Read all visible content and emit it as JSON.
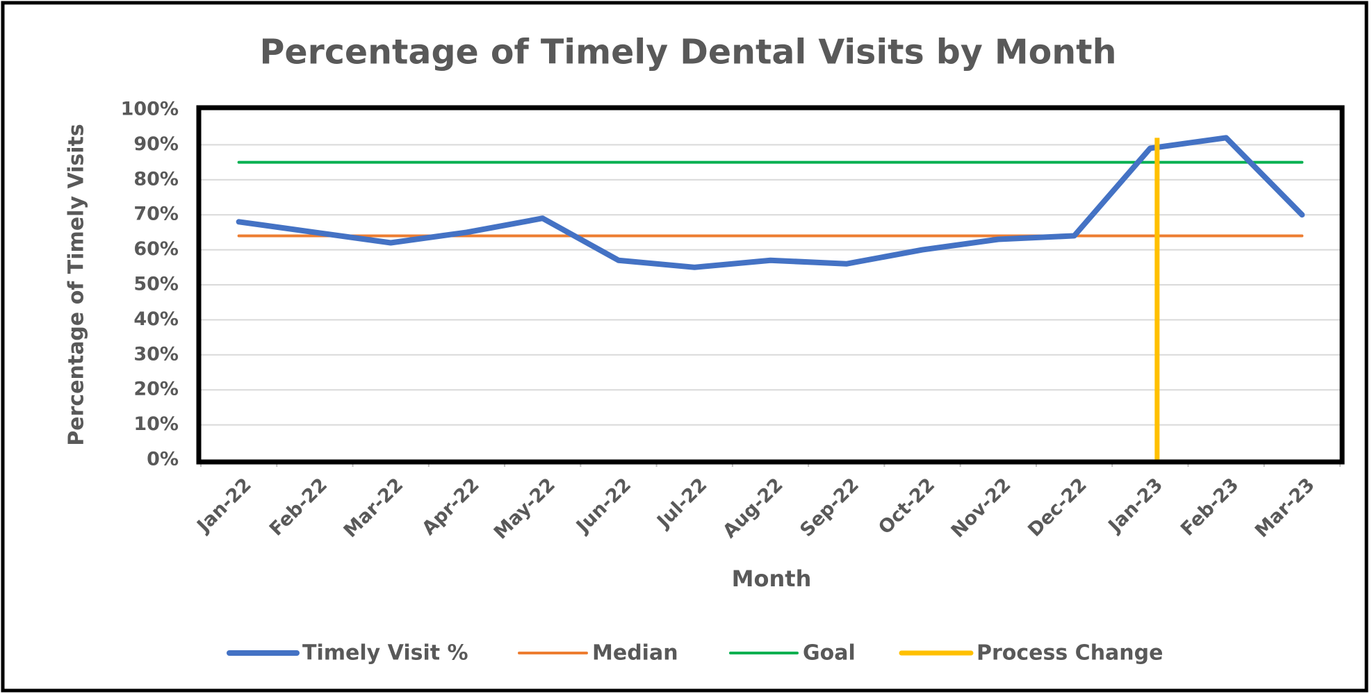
{
  "chart_data": {
    "type": "line",
    "title": "Percentage of Timely Dental Visits by Month",
    "x_label": "Month",
    "y_label": "Percentage of Timely Visits",
    "categories": [
      "Jan-22",
      "Feb-22",
      "Mar-22",
      "Apr-22",
      "May-22",
      "Jun-22",
      "Jul-22",
      "Aug-22",
      "Sep-22",
      "Oct-22",
      "Nov-22",
      "Dec-22",
      "Jan-23",
      "Feb-23",
      "Mar-23"
    ],
    "series": [
      {
        "name": "Timely Visit %",
        "color": "#4472c4",
        "values": [
          68,
          65,
          62,
          65,
          69,
          57,
          55,
          57,
          56,
          60,
          63,
          64,
          89,
          92,
          70
        ]
      },
      {
        "name": "Median",
        "color": "#ed7d31",
        "values": [
          64,
          64,
          64,
          64,
          64,
          64,
          64,
          64,
          64,
          64,
          64,
          64,
          64,
          64,
          64
        ]
      },
      {
        "name": "Goal",
        "color": "#00b050",
        "values": [
          85,
          85,
          85,
          85,
          85,
          85,
          85,
          85,
          85,
          85,
          85,
          85,
          85,
          85,
          85
        ]
      }
    ],
    "process_change": {
      "name": "Process Change",
      "color": "#ffc000",
      "category": "Jan-23",
      "values": [
        0,
        92
      ]
    },
    "ylim": [
      0,
      100
    ],
    "yticks": [
      {
        "value": 0,
        "label": "0%"
      },
      {
        "value": 10,
        "label": "10%"
      },
      {
        "value": 20,
        "label": "20%"
      },
      {
        "value": 30,
        "label": "30%"
      },
      {
        "value": 40,
        "label": "40%"
      },
      {
        "value": 50,
        "label": "50%"
      },
      {
        "value": 60,
        "label": "60%"
      },
      {
        "value": 70,
        "label": "70%"
      },
      {
        "value": 80,
        "label": "80%"
      },
      {
        "value": 90,
        "label": "90%"
      },
      {
        "value": 100,
        "label": "100%"
      }
    ],
    "grid": true,
    "legend": "bottom"
  }
}
